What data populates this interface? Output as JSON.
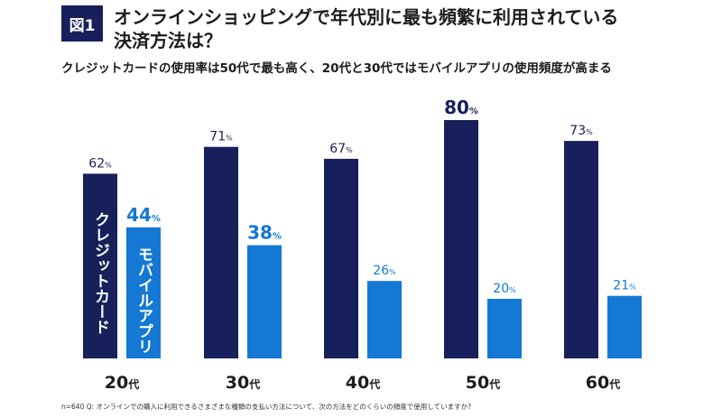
{
  "figure_label": "図1",
  "title_line1": "オンラインショッピングで年代別に最も頻繁に利用されている",
  "title_line2": "決済方法は？",
  "subtitle": "クレジットカードの使用率は50代で最も高く、20代と30代ではモバイルアプリの使用頻度が高まる",
  "footnote": "n=640 Q: オンラインでの購入に利用できるさまざまな種類の支払い方法について、次の方法をどのくらいの頻度で使用していますか?",
  "colors": {
    "credit": "#17205a",
    "mobile": "#1478d4"
  },
  "chart_data": {
    "type": "bar",
    "title": "",
    "categories": [
      "20代",
      "30代",
      "40代",
      "50代",
      "60代"
    ],
    "unit": "%",
    "series": [
      {
        "name": "クレジットカード",
        "values": [
          62,
          71,
          67,
          80,
          73
        ]
      },
      {
        "name": "モバイルアプリ",
        "values": [
          44,
          38,
          26,
          20,
          21
        ]
      }
    ],
    "highlight": {
      "series": [
        [],
        [
          0,
          1
        ]
      ],
      "max_index": 3
    },
    "ylim": [
      0,
      80
    ]
  }
}
